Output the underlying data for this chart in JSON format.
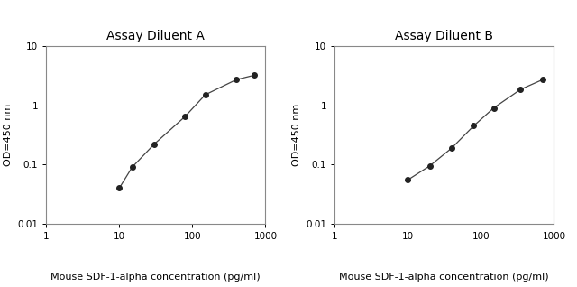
{
  "title_A": "Assay Diluent A",
  "title_B": "Assay Diluent B",
  "xlabel": "Mouse SDF-1-alpha concentration (pg/ml)",
  "ylabel": "OD=450 nm",
  "xlim": [
    1,
    1000
  ],
  "ylim": [
    0.01,
    10
  ],
  "x_A": [
    10,
    15,
    30,
    80,
    150,
    400,
    700
  ],
  "y_A": [
    0.04,
    0.09,
    0.22,
    0.65,
    1.5,
    2.7,
    3.2
  ],
  "x_B": [
    10,
    20,
    40,
    80,
    150,
    350,
    700
  ],
  "y_B": [
    0.055,
    0.095,
    0.19,
    0.45,
    0.9,
    1.85,
    2.7
  ],
  "line_color": "#444444",
  "marker_color": "#222222",
  "marker_size": 4,
  "title_fontsize": 10,
  "label_fontsize": 8,
  "tick_fontsize": 7.5,
  "background_color": "#ffffff",
  "spine_color": "#888888"
}
